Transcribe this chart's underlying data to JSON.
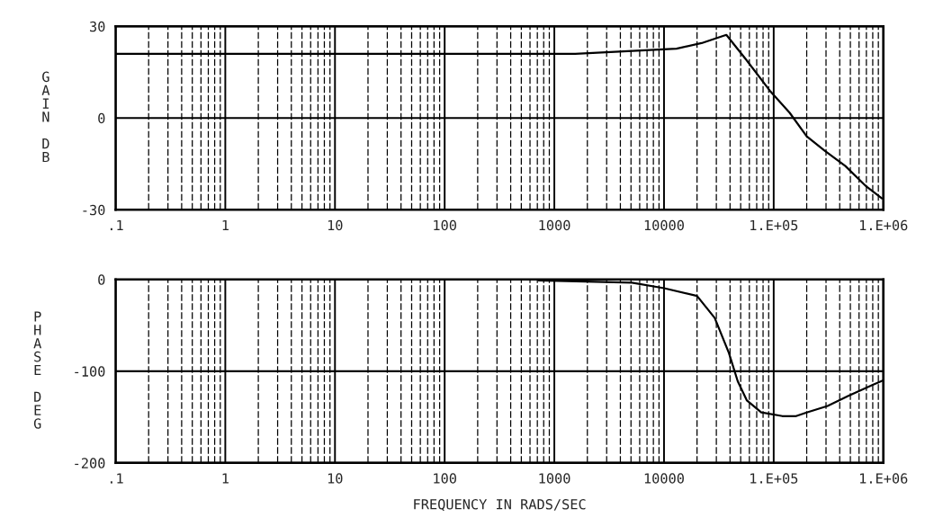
{
  "chart_data": [
    {
      "type": "line",
      "ylabel": "GAIN DB",
      "x": [
        0.1,
        1550,
        13000,
        22000,
        37000,
        56000,
        92000,
        140000,
        200000,
        290000,
        450000,
        700000,
        970000
      ],
      "series": [
        {
          "color": "#000000",
          "values": [
            21,
            21,
            22.7,
            24.5,
            27.2,
            19.1,
            9,
            1.7,
            -6,
            -10.6,
            -15.7,
            -22.4,
            -26.3
          ]
        }
      ],
      "log": "x",
      "xlim": [
        0.1,
        1000000
      ],
      "xticks": [
        {
          "value": 0.1,
          "label": ".1"
        },
        1,
        10,
        100,
        1000,
        10000,
        {
          "value": 100000,
          "label": "1.E+05"
        },
        {
          "value": 1000000,
          "label": "1.E+06"
        }
      ],
      "ylim": [
        -30,
        30
      ],
      "yticks": [
        -30,
        0,
        30
      ],
      "grid": true
    },
    {
      "type": "line",
      "ylabel": "PHASE DEG",
      "xlabel": "FREQUENCY IN RADS/SEC",
      "x": [
        720,
        5100,
        10000,
        20000,
        29000,
        39000,
        47000,
        57000,
        77000,
        120000,
        160000,
        200000,
        310000,
        480000,
        800000,
        1000000
      ],
      "series": [
        {
          "color": "#000000",
          "values": [
            -1,
            -3.5,
            -9.5,
            -18,
            -42,
            -80,
            -111,
            -132,
            -145,
            -149,
            -149,
            -145,
            -138,
            -127,
            -115,
            -110
          ]
        }
      ],
      "log": "x",
      "xlim": [
        0.1,
        1000000
      ],
      "xticks": [
        {
          "value": 0.1,
          "label": ".1"
        },
        1,
        10,
        100,
        1000,
        10000,
        {
          "value": 100000,
          "label": "1.E+05"
        },
        {
          "value": 1000000,
          "label": "1.E+06"
        }
      ],
      "ylim": [
        -200,
        0
      ],
      "yticks": [
        -200,
        -100,
        0
      ],
      "grid": true
    }
  ]
}
